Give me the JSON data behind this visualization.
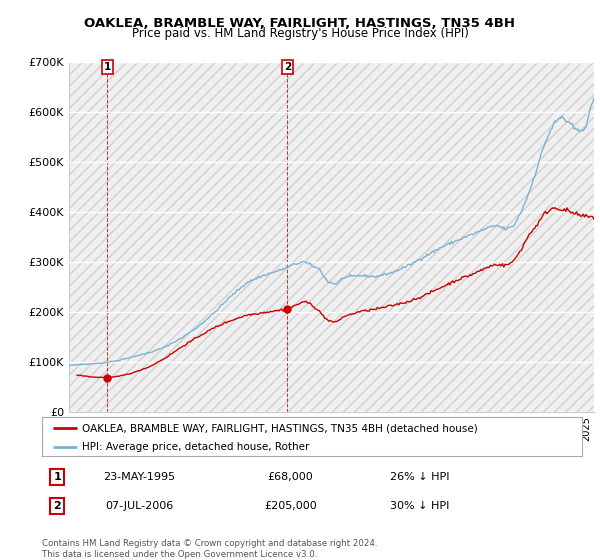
{
  "title": "OAKLEA, BRAMBLE WAY, FAIRLIGHT, HASTINGS, TN35 4BH",
  "subtitle": "Price paid vs. HM Land Registry's House Price Index (HPI)",
  "legend_line1": "OAKLEA, BRAMBLE WAY, FAIRLIGHT, HASTINGS, TN35 4BH (detached house)",
  "legend_line2": "HPI: Average price, detached house, Rother",
  "transaction1_date": "23-MAY-1995",
  "transaction1_price": "£68,000",
  "transaction1_hpi": "26% ↓ HPI",
  "transaction2_date": "07-JUL-2006",
  "transaction2_price": "£205,000",
  "transaction2_hpi": "30% ↓ HPI",
  "footnote": "Contains HM Land Registry data © Crown copyright and database right 2024.\nThis data is licensed under the Open Government Licence v3.0.",
  "hpi_color": "#7ab3d4",
  "price_color": "#cc0000",
  "ylim": [
    0,
    700000
  ],
  "yticks": [
    0,
    100000,
    200000,
    300000,
    400000,
    500000,
    600000,
    700000
  ],
  "ytick_labels": [
    "£0",
    "£100K",
    "£200K",
    "£300K",
    "£400K",
    "£500K",
    "£600K",
    "£700K"
  ],
  "xlim_start": 1993.0,
  "xlim_end": 2025.5,
  "t1_x": 1995.37,
  "t1_y": 68000,
  "t2_x": 2006.52,
  "t2_y": 205000
}
